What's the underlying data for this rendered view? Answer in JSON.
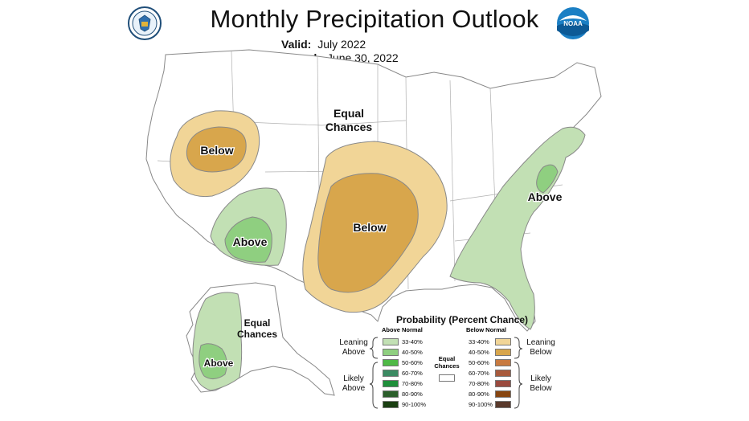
{
  "title": "Monthly Precipitation Outlook",
  "valid_label": "Valid:",
  "valid_value": "July 2022",
  "issued_label": "Issued:",
  "issued_value": "June 30, 2022",
  "map_labels": {
    "below_west": "Below",
    "below_central": "Below",
    "above_southwest": "Above",
    "above_east": "Above",
    "above_alaska": "Above",
    "equal_chances_1": "Equal",
    "equal_chances_2": "Chances",
    "ak_equal_1": "Equal",
    "ak_equal_2": "Chances"
  },
  "legend": {
    "title": "Probability (Percent Chance)",
    "above_header": "Above Normal",
    "below_header": "Below Normal",
    "equal_1": "Equal",
    "equal_2": "Chances",
    "leaning_above_1": "Leaning",
    "leaning_above_2": "Above",
    "likely_above_1": "Likely",
    "likely_above_2": "Above",
    "leaning_below_1": "Leaning",
    "leaning_below_2": "Below",
    "likely_below_1": "Likely",
    "likely_below_2": "Below",
    "above_bins": [
      {
        "range": "33-40%",
        "color": "#c2e0b4"
      },
      {
        "range": "40-50%",
        "color": "#8fcf80"
      },
      {
        "range": "50-60%",
        "color": "#4fb946"
      },
      {
        "range": "60-70%",
        "color": "#3b8a62"
      },
      {
        "range": "70-80%",
        "color": "#1e8f3a"
      },
      {
        "range": "80-90%",
        "color": "#2b5e2a"
      },
      {
        "range": "90-100%",
        "color": "#1a3f12"
      }
    ],
    "below_bins": [
      {
        "range": "33-40%",
        "color": "#f1d597"
      },
      {
        "range": "40-50%",
        "color": "#d8a64c"
      },
      {
        "range": "50-60%",
        "color": "#c87a40"
      },
      {
        "range": "60-70%",
        "color": "#a85a3c"
      },
      {
        "range": "70-80%",
        "color": "#9a4a3e"
      },
      {
        "range": "80-90%",
        "color": "#874510"
      },
      {
        "range": "90-100%",
        "color": "#5a3a2c"
      }
    ]
  },
  "icons": {
    "left_logo": "commerce-seal-icon",
    "right_logo": "noaa-logo-icon"
  }
}
